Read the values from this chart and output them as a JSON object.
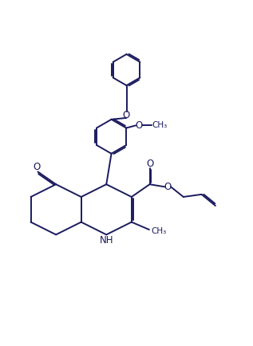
{
  "bg_color": "#ffffff",
  "line_color": "#1a1a5e",
  "line_width": 1.4,
  "figsize": [
    3.17,
    4.34
  ],
  "dpi": 100,
  "xlim": [
    -1.5,
    8.5
  ],
  "ylim": [
    -1.0,
    10.5
  ]
}
